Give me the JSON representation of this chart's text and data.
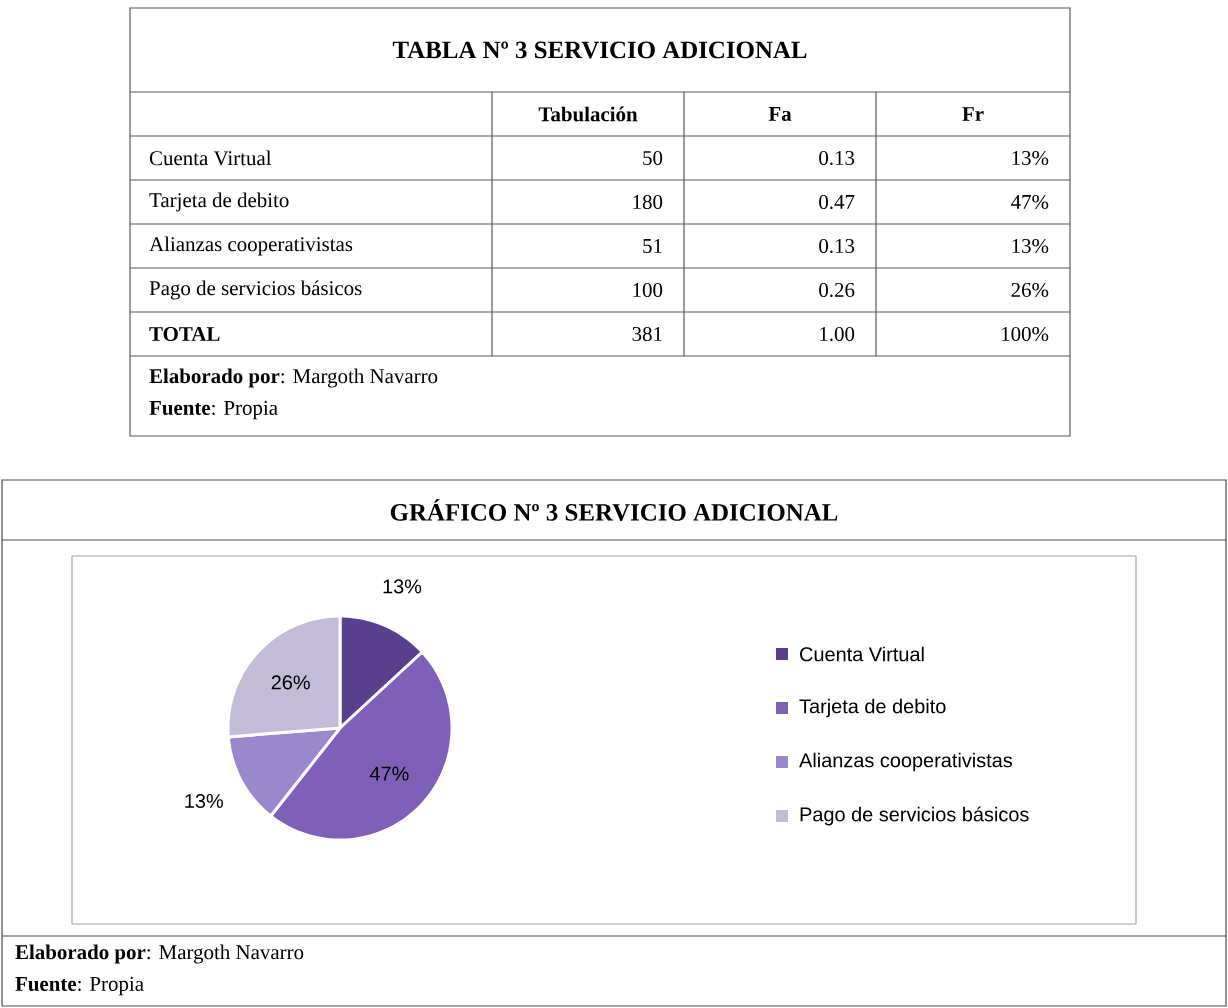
{
  "chart_data": [
    {
      "type": "other",
      "title": "TABLA Nº  3 SERVICIO ADICIONAL",
      "categories": [
        "Cuenta Virtual",
        "Tarjeta de debito",
        "Alianzas cooperativistas",
        "Pago de servicios básicos",
        "TOTAL"
      ],
      "series": [
        {
          "name": "Tabulación",
          "values": [
            50,
            180,
            51,
            100,
            381
          ]
        },
        {
          "name": "Fa",
          "values": [
            0.13,
            0.47,
            0.13,
            0.26,
            1.0
          ],
          "value_labels": [
            "0.13",
            "0.47",
            "0.13",
            "0.26",
            "1.00"
          ]
        },
        {
          "name": "Fr",
          "values": [
            13,
            47,
            13,
            26,
            100
          ],
          "value_labels": [
            "13%",
            "47%",
            "13%",
            "26%",
            "100%"
          ]
        }
      ],
      "data_labels": true,
      "annotations": [
        "**Elaborado por**: Margoth Navarro",
        "**Fuente**: Propia"
      ]
    },
    {
      "type": "pie",
      "title": "GRÁFICO Nº  3 SERVICIO ADICIONAL",
      "categories": [
        "Cuenta Virtual",
        "Tarjeta de debito",
        "Alianzas cooperativistas",
        "Pago de servicios básicos"
      ],
      "values": [
        13,
        47,
        13,
        26
      ],
      "value_labels": [
        "13%",
        "47%",
        "13%",
        "26%"
      ],
      "colors": [
        "#5b3f8f",
        "#7f5fb8",
        "#9a88cc",
        "#c3bcd8"
      ],
      "legend": "right",
      "annotations": [
        "**Elaborado por**: Margoth Navarro",
        "**Fuente**: Propia"
      ]
    }
  ]
}
